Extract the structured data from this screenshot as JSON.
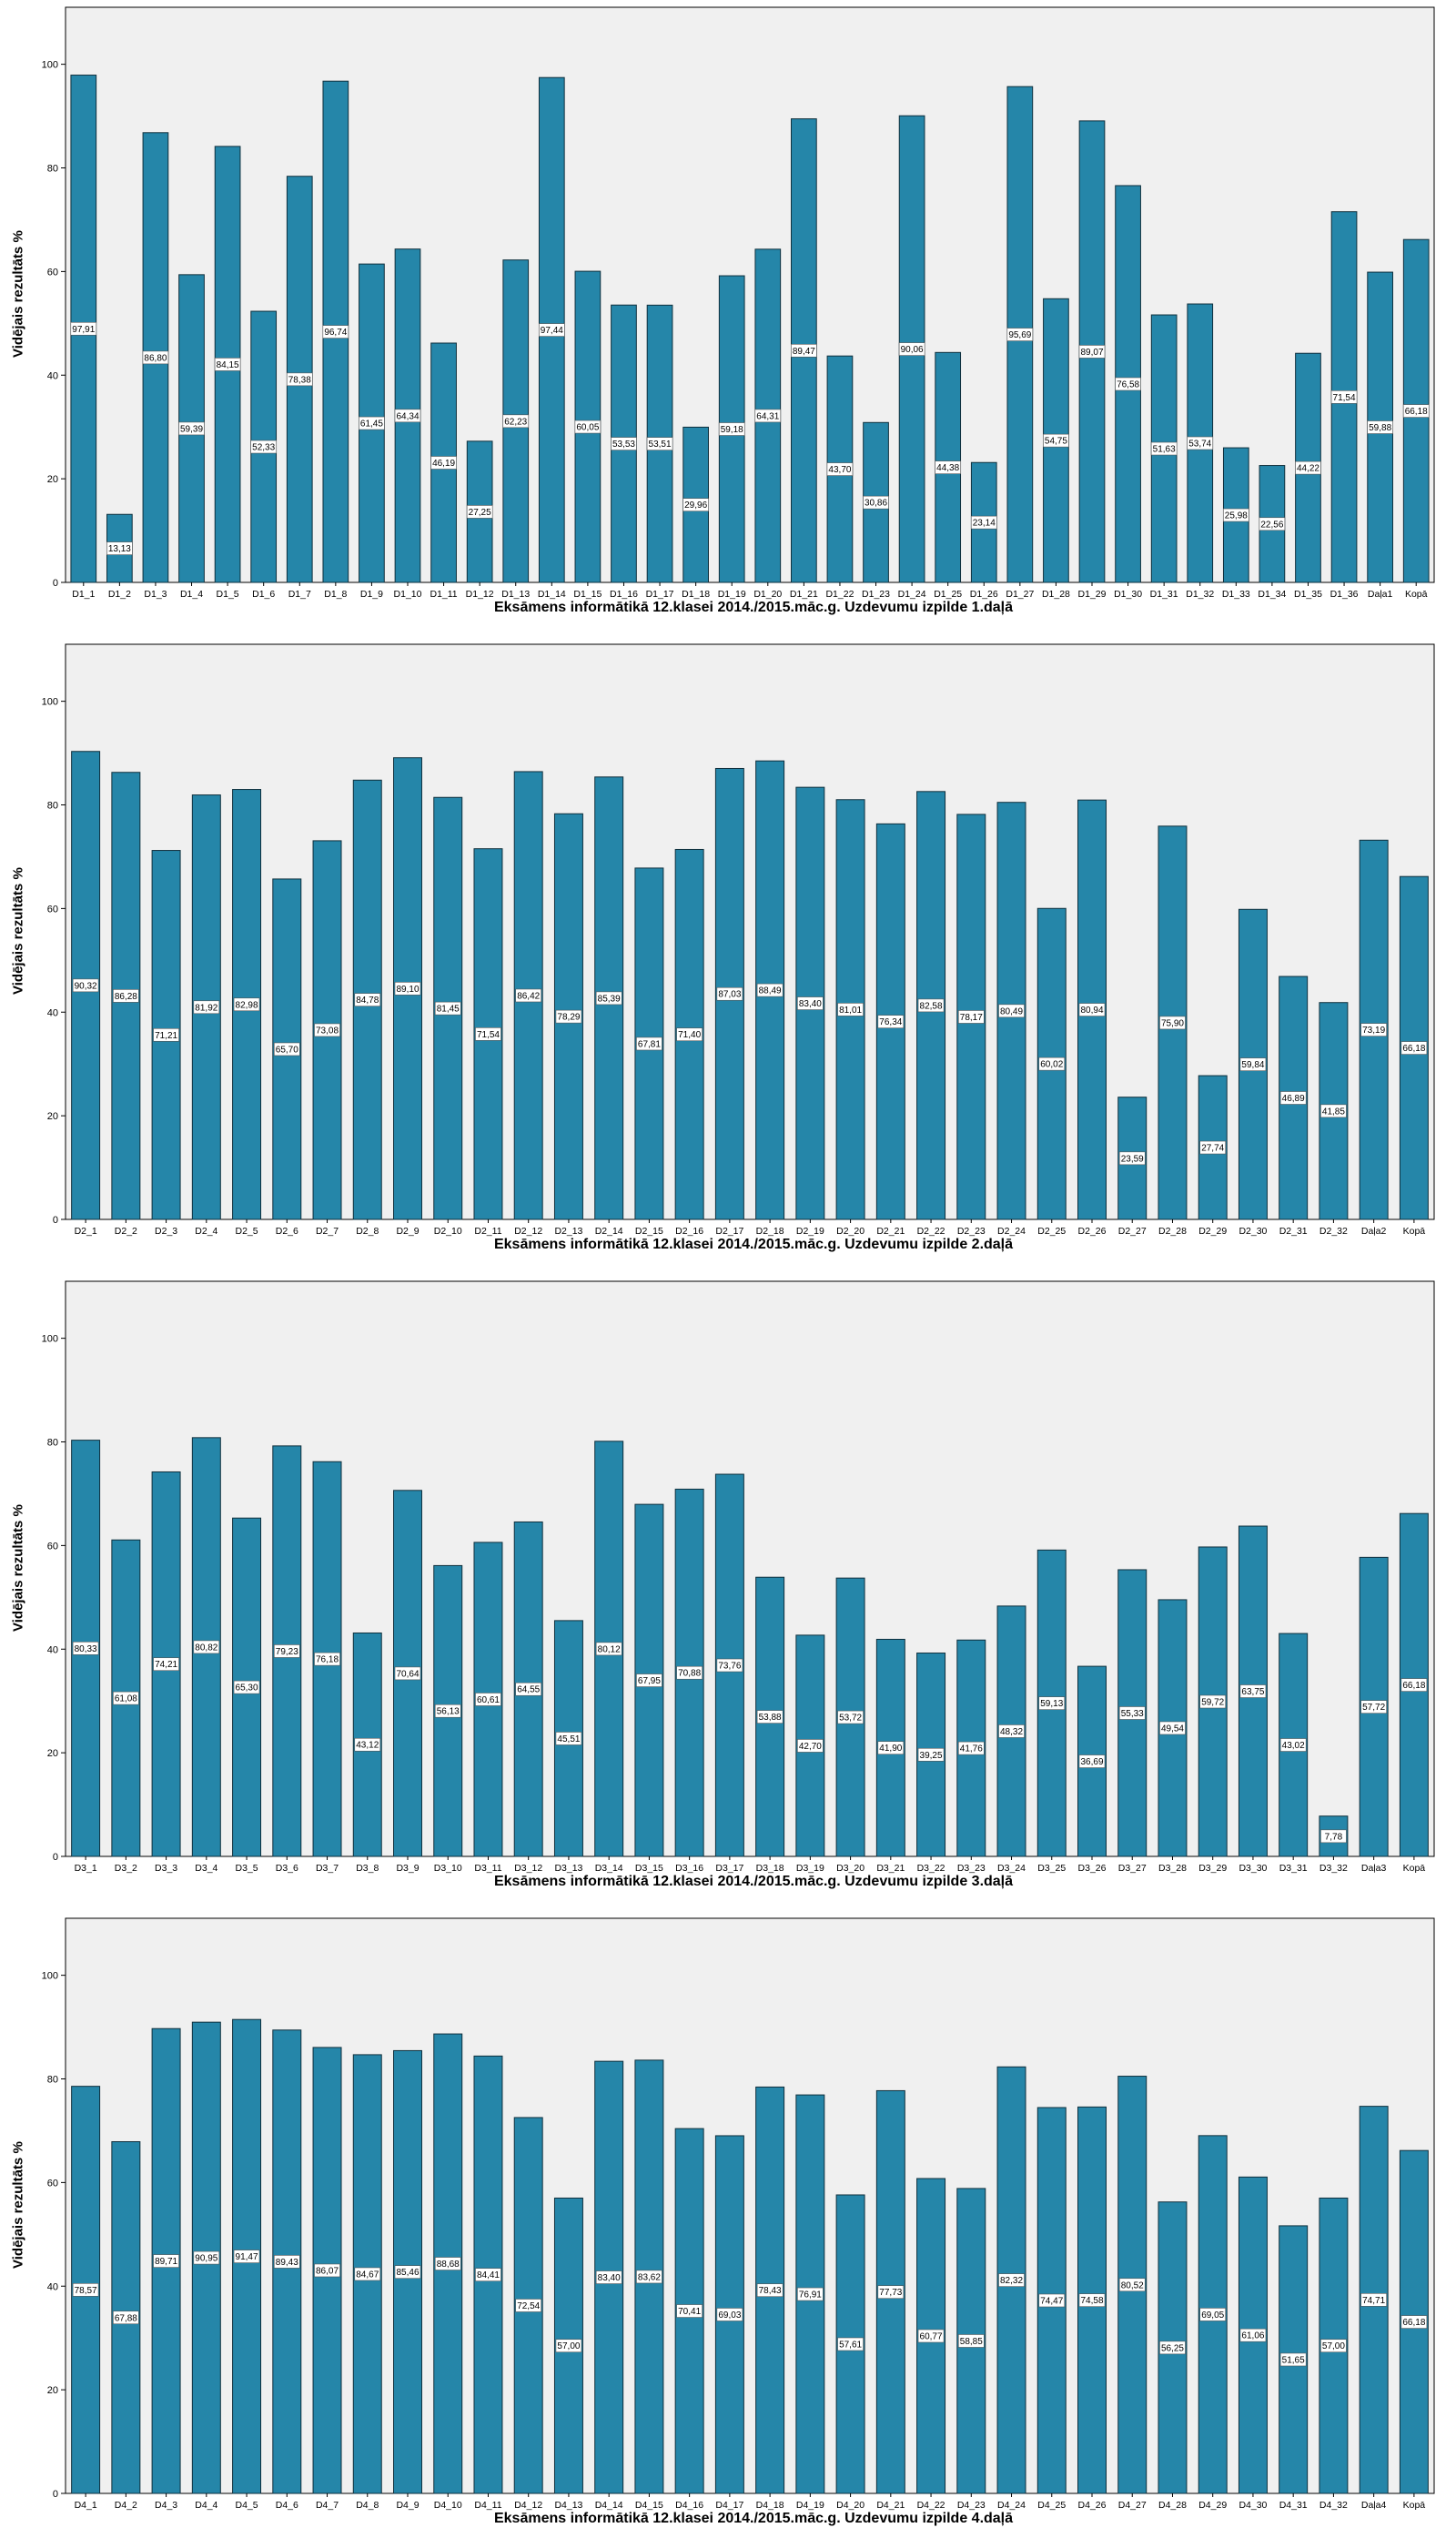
{
  "colors": {
    "bar_fill": "#2586a9",
    "bar_stroke": "#0f2f3c",
    "plot_background": "#f0f0f0",
    "label_box": "#ffffff"
  },
  "chart_data": [
    {
      "type": "bar",
      "ylabel": "Vidējais rezultāts %",
      "xlabel": "Eksāmens informātikā 12.klasei 2014./2015.māc.g. Uzdevumu izpilde 1.daļā",
      "ylim": [
        0,
        111
      ],
      "yticks": [
        0,
        20,
        40,
        60,
        80,
        100
      ],
      "categories": [
        "D1_1",
        "D1_2",
        "D1_3",
        "D1_4",
        "D1_5",
        "D1_6",
        "D1_7",
        "D1_8",
        "D1_9",
        "D1_10",
        "D1_11",
        "D1_12",
        "D1_13",
        "D1_14",
        "D1_15",
        "D1_16",
        "D1_17",
        "D1_18",
        "D1_19",
        "D1_20",
        "D1_21",
        "D1_22",
        "D1_23",
        "D1_24",
        "D1_25",
        "D1_26",
        "D1_27",
        "D1_28",
        "D1_29",
        "D1_30",
        "D1_31",
        "D1_32",
        "D1_33",
        "D1_34",
        "D1_35",
        "D1_36",
        "Daļa1",
        "Kopā"
      ],
      "values": [
        97.91,
        13.13,
        86.8,
        59.39,
        84.15,
        52.33,
        78.38,
        96.74,
        61.45,
        64.34,
        46.19,
        27.25,
        62.23,
        97.44,
        60.05,
        53.53,
        53.51,
        29.96,
        59.18,
        64.31,
        89.47,
        43.7,
        30.86,
        90.06,
        44.38,
        23.14,
        95.69,
        54.75,
        89.07,
        76.58,
        51.63,
        53.74,
        25.98,
        22.56,
        44.22,
        71.54,
        59.88,
        66.18
      ],
      "value_labels": [
        "97,91",
        "13,13",
        "86,80",
        "59,39",
        "84,15",
        "52,33",
        "78,38",
        "96,74",
        "61,45",
        "64,34",
        "46,19",
        "27,25",
        "62,23",
        "97,44",
        "60,05",
        "53,53",
        "53,51",
        "29,96",
        "59,18",
        "64,31",
        "89,47",
        "43,70",
        "30,86",
        "90,06",
        "44,38",
        "23,14",
        "95,69",
        "54,75",
        "89,07",
        "76,58",
        "51,63",
        "53,74",
        "25,98",
        "22,56",
        "44,22",
        "71,54",
        "59,88",
        "66,18"
      ]
    },
    {
      "type": "bar",
      "ylabel": "Vidējais rezultāts %",
      "xlabel": "Eksāmens informātikā 12.klasei 2014./2015.māc.g. Uzdevumu izpilde 2.daļā",
      "ylim": [
        0,
        111
      ],
      "yticks": [
        0,
        20,
        40,
        60,
        80,
        100
      ],
      "categories": [
        "D2_1",
        "D2_2",
        "D2_3",
        "D2_4",
        "D2_5",
        "D2_6",
        "D2_7",
        "D2_8",
        "D2_9",
        "D2_10",
        "D2_11",
        "D2_12",
        "D2_13",
        "D2_14",
        "D2_15",
        "D2_16",
        "D2_17",
        "D2_18",
        "D2_19",
        "D2_20",
        "D2_21",
        "D2_22",
        "D2_23",
        "D2_24",
        "D2_25",
        "D2_26",
        "D2_27",
        "D2_28",
        "D2_29",
        "D2_30",
        "D2_31",
        "D2_32",
        "Daļa2",
        "Kopā"
      ],
      "values": [
        90.32,
        86.28,
        71.21,
        81.92,
        82.98,
        65.7,
        73.08,
        84.78,
        89.1,
        81.45,
        71.54,
        86.42,
        78.29,
        85.39,
        67.81,
        71.4,
        87.03,
        88.49,
        83.4,
        81.01,
        76.34,
        82.58,
        78.17,
        80.49,
        60.02,
        80.94,
        23.59,
        75.9,
        27.74,
        59.84,
        46.89,
        41.85,
        73.19,
        66.18
      ],
      "value_labels": [
        "90,32",
        "86,28",
        "71,21",
        "81,92",
        "82,98",
        "65,70",
        "73,08",
        "84,78",
        "89,10",
        "81,45",
        "71,54",
        "86,42",
        "78,29",
        "85,39",
        "67,81",
        "71,40",
        "87,03",
        "88,49",
        "83,40",
        "81,01",
        "76,34",
        "82,58",
        "78,17",
        "80,49",
        "60,02",
        "80,94",
        "23,59",
        "75,90",
        "27,74",
        "59,84",
        "46,89",
        "41,85",
        "73,19",
        "66,18"
      ]
    },
    {
      "type": "bar",
      "ylabel": "Vidējais rezultāts %",
      "xlabel": "Eksāmens informātikā 12.klasei 2014./2015.māc.g. Uzdevumu izpilde 3.daļā",
      "ylim": [
        0,
        111
      ],
      "yticks": [
        0,
        20,
        40,
        60,
        80,
        100
      ],
      "categories": [
        "D3_1",
        "D3_2",
        "D3_3",
        "D3_4",
        "D3_5",
        "D3_6",
        "D3_7",
        "D3_8",
        "D3_9",
        "D3_10",
        "D3_11",
        "D3_12",
        "D3_13",
        "D3_14",
        "D3_15",
        "D3_16",
        "D3_17",
        "D3_18",
        "D3_19",
        "D3_20",
        "D3_21",
        "D3_22",
        "D3_23",
        "D3_24",
        "D3_25",
        "D3_26",
        "D3_27",
        "D3_28",
        "D3_29",
        "D3_30",
        "D3_31",
        "D3_32",
        "Daļa3",
        "Kopā"
      ],
      "values": [
        80.33,
        61.08,
        74.21,
        80.82,
        65.3,
        79.23,
        76.18,
        43.12,
        70.64,
        56.13,
        60.61,
        64.55,
        45.51,
        80.12,
        67.95,
        70.88,
        73.76,
        53.88,
        42.7,
        53.72,
        41.9,
        39.25,
        41.76,
        48.32,
        59.13,
        36.69,
        55.33,
        49.54,
        59.72,
        63.75,
        43.02,
        7.78,
        57.72,
        66.18
      ],
      "value_labels": [
        "80,33",
        "61,08",
        "74,21",
        "80,82",
        "65,30",
        "79,23",
        "76,18",
        "43,12",
        "70,64",
        "56,13",
        "60,61",
        "64,55",
        "45,51",
        "80,12",
        "67,95",
        "70,88",
        "73,76",
        "53,88",
        "42,70",
        "53,72",
        "41,90",
        "39,25",
        "41,76",
        "48,32",
        "59,13",
        "36,69",
        "55,33",
        "49,54",
        "59,72",
        "63,75",
        "43,02",
        "7,78",
        "57,72",
        "66,18"
      ]
    },
    {
      "type": "bar",
      "ylabel": "Vidējais rezultāts %",
      "xlabel": "Eksāmens informātikā 12.klasei 2014./2015.māc.g. Uzdevumu izpilde 4.daļā",
      "ylim": [
        0,
        111
      ],
      "yticks": [
        0,
        20,
        40,
        60,
        80,
        100
      ],
      "categories": [
        "D4_1",
        "D4_2",
        "D4_3",
        "D4_4",
        "D4_5",
        "D4_6",
        "D4_7",
        "D4_8",
        "D4_9",
        "D4_10",
        "D4_11",
        "D4_12",
        "D4_13",
        "D4_14",
        "D4_15",
        "D4_16",
        "D4_17",
        "D4_18",
        "D4_19",
        "D4_20",
        "D4_21",
        "D4_22",
        "D4_23",
        "D4_24",
        "D4_25",
        "D4_26",
        "D4_27",
        "D4_28",
        "D4_29",
        "D4_30",
        "D4_31",
        "D4_32",
        "Daļa4",
        "Kopā"
      ],
      "values": [
        78.57,
        67.88,
        89.71,
        90.95,
        91.47,
        89.43,
        86.07,
        84.67,
        85.46,
        88.68,
        84.41,
        72.54,
        57.0,
        83.4,
        83.62,
        70.41,
        69.03,
        78.43,
        76.91,
        57.61,
        77.73,
        60.77,
        58.85,
        82.32,
        74.47,
        74.58,
        80.52,
        56.25,
        69.05,
        61.06,
        51.65,
        57.0,
        74.71,
        66.18
      ],
      "value_labels": [
        "78,57",
        "67,88",
        "89,71",
        "90,95",
        "91,47",
        "89,43",
        "86,07",
        "84,67",
        "85,46",
        "88,68",
        "84,41",
        "72,54",
        "57,00",
        "83,40",
        "83,62",
        "70,41",
        "69,03",
        "78,43",
        "76,91",
        "57,61",
        "77,73",
        "60,77",
        "58,85",
        "82,32",
        "74,47",
        "74,58",
        "80,52",
        "56,25",
        "69,05",
        "61,06",
        "51,65",
        "57,00",
        "74,71",
        "66,18"
      ]
    }
  ]
}
